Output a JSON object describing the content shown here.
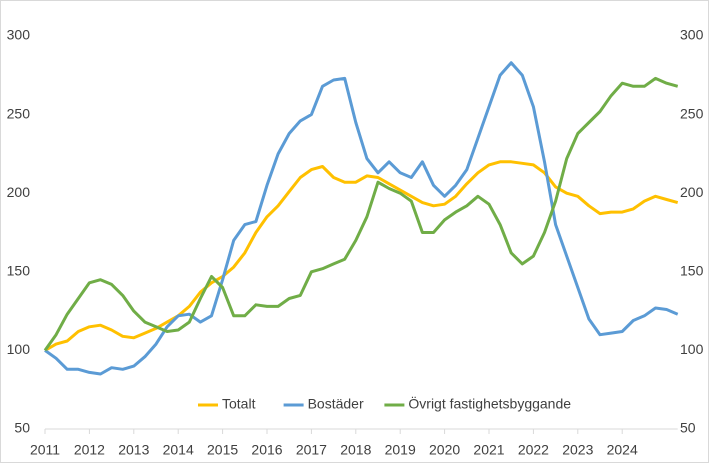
{
  "chart_data": {
    "type": "line",
    "categories": [
      "2011",
      null,
      null,
      null,
      "2012",
      null,
      null,
      null,
      "2013",
      null,
      null,
      null,
      "2014",
      null,
      null,
      null,
      "2015",
      null,
      null,
      null,
      "2016",
      null,
      null,
      null,
      "2017",
      null,
      null,
      null,
      "2018",
      null,
      null,
      null,
      "2019",
      null,
      null,
      null,
      "2020",
      null,
      null,
      null,
      "2021",
      null,
      null,
      null,
      "2022",
      null,
      null,
      null,
      "2023",
      null,
      null,
      null,
      "2024",
      null,
      null,
      null,
      null,
      null
    ],
    "series": [
      {
        "name": "Totalt",
        "color": "#FFC000",
        "values": [
          100,
          104,
          106,
          112,
          115,
          116,
          113,
          109,
          108,
          111,
          114,
          118,
          122,
          128,
          137,
          143,
          147,
          153,
          162,
          175,
          185,
          192,
          201,
          210,
          215,
          217,
          210,
          207,
          207,
          211,
          210,
          206,
          202,
          198,
          194,
          192,
          193,
          198,
          206,
          213,
          218,
          220,
          220,
          219,
          218,
          213,
          204,
          200,
          198,
          192,
          187,
          188,
          188,
          190,
          195,
          198,
          196,
          194
        ]
      },
      {
        "name": "Bostäder",
        "color": "#5B9BD5",
        "values": [
          100,
          95,
          88,
          88,
          86,
          85,
          89,
          88,
          90,
          96,
          104,
          115,
          122,
          123,
          118,
          122,
          145,
          170,
          180,
          182,
          205,
          225,
          238,
          246,
          250,
          268,
          272,
          273,
          245,
          222,
          213,
          220,
          213,
          210,
          220,
          205,
          198,
          205,
          215,
          235,
          255,
          275,
          283,
          275,
          255,
          220,
          180,
          160,
          140,
          120,
          110,
          111,
          112,
          119,
          122,
          127,
          126,
          123
        ]
      },
      {
        "name": "Övrigt fastighetsbyggande",
        "color": "#70AD47",
        "values": [
          100,
          110,
          123,
          133,
          143,
          145,
          142,
          135,
          125,
          118,
          115,
          112,
          113,
          118,
          133,
          147,
          140,
          122,
          122,
          129,
          128,
          128,
          133,
          135,
          150,
          152,
          155,
          158,
          170,
          185,
          207,
          203,
          200,
          195,
          175,
          175,
          183,
          188,
          192,
          198,
          193,
          180,
          162,
          155,
          160,
          175,
          195,
          222,
          238,
          245,
          252,
          262,
          270,
          268,
          268,
          273,
          270,
          268
        ]
      }
    ],
    "ylim": [
      50,
      300
    ],
    "yticks": [
      50,
      100,
      150,
      200,
      250,
      300
    ],
    "y2lim": [
      50,
      300
    ],
    "y2ticks": [
      50,
      100,
      150,
      200,
      250,
      300
    ],
    "grid": false,
    "legend": "bottom"
  }
}
